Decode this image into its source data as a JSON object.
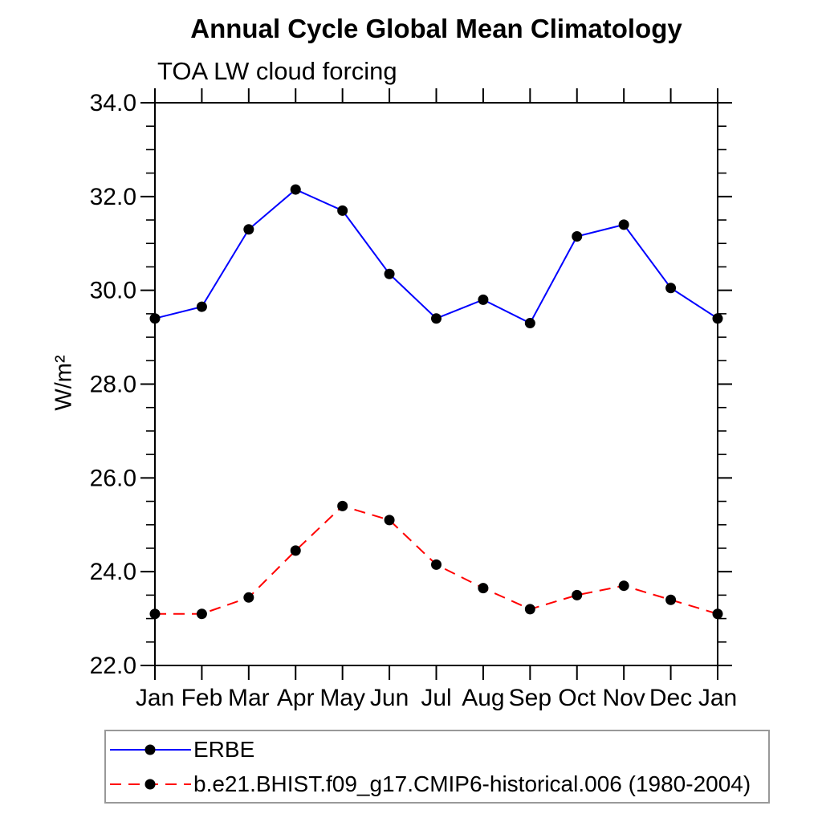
{
  "page": {
    "background_color": "#ffffff",
    "axis_color": "#000000",
    "legend_border_color": "#999999"
  },
  "chart_data": {
    "type": "line",
    "title": "Annual Cycle Global Mean Climatology",
    "subtitle": "TOA LW cloud forcing",
    "ylabel": "W/m²",
    "xlabel": "",
    "x_categories": [
      "Jan",
      "Feb",
      "Mar",
      "Apr",
      "May",
      "Jun",
      "Jul",
      "Aug",
      "Sep",
      "Oct",
      "Nov",
      "Dec",
      "Jan"
    ],
    "ylim": [
      22.0,
      34.0
    ],
    "ytick_values": [
      22.0,
      24.0,
      26.0,
      28.0,
      30.0,
      32.0,
      34.0
    ],
    "ytick_labels": [
      "22.0",
      "24.0",
      "26.0",
      "28.0",
      "30.0",
      "32.0",
      "34.0"
    ],
    "ytick_minor_step": 0.5,
    "grid": false,
    "tick_direction": "out",
    "legend_position": "below-bottom-left",
    "marker": "filled-circle",
    "marker_color": "#000000",
    "series": [
      {
        "name": "ERBE",
        "color": "#0000ff",
        "line_style": "solid",
        "values": [
          29.4,
          29.65,
          31.3,
          32.15,
          31.7,
          30.35,
          29.4,
          29.8,
          29.3,
          31.15,
          31.4,
          30.05,
          29.4
        ]
      },
      {
        "name": "b.e21.BHIST.f09_g17.CMIP6-historical.006 (1980-2004)",
        "color": "#ff0000",
        "line_style": "dashed",
        "values": [
          23.1,
          23.1,
          23.45,
          24.45,
          25.4,
          25.1,
          24.15,
          23.65,
          23.2,
          23.5,
          23.7,
          23.4,
          23.1
        ]
      }
    ]
  }
}
